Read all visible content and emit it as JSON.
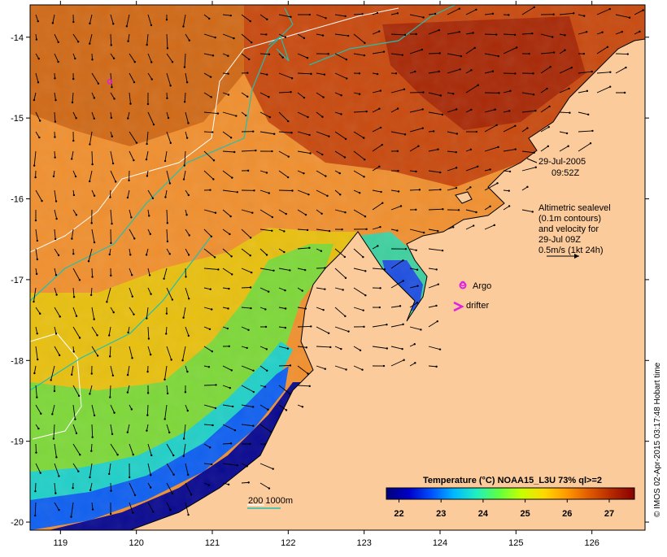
{
  "map": {
    "type": "sea-surface-temperature-map",
    "lon_range": [
      118.6,
      126.7
    ],
    "lat_range": [
      -20.1,
      -13.6
    ],
    "x_ticks": [
      119,
      120,
      121,
      122,
      123,
      124,
      125,
      126
    ],
    "x_tick_labels": [
      "119",
      "120",
      "121",
      "122",
      "123",
      "124",
      "125",
      "126"
    ],
    "y_ticks": [
      -14,
      -15,
      -16,
      -17,
      -18,
      -19,
      -20
    ],
    "y_tick_labels": [
      "-14",
      "-15",
      "-16",
      "-17",
      "-18",
      "-19",
      "-20"
    ]
  },
  "annotations": {
    "date": "29-Jul-2005",
    "time": "09:52Z",
    "alt_line1": "Altimetric sealevel",
    "alt_line2": "(0.1m contours)",
    "alt_line3": "and velocity for",
    "alt_line4": "29-Jul 09Z",
    "alt_line5": "0.5m/s (1kt 24h)",
    "argo_label": "Argo",
    "drifter_label": "drifter",
    "isobath_label": "200  1000m"
  },
  "argo_floats": [
    {
      "lon": 124.3,
      "lat": -17.05
    },
    {
      "lon": 119.65,
      "lat": -14.55
    }
  ],
  "legend": {
    "title": "Temperature (°C) NOAA15_L3U 73% ql>=2",
    "ticks": [
      22,
      23,
      24,
      25,
      26,
      27
    ],
    "tick_labels": [
      "22",
      "23",
      "24",
      "25",
      "26",
      "27"
    ],
    "range": [
      21.7,
      27.6
    ]
  },
  "credit": "© IMOS 02-Apr-2015 03:17:48 Hobart time",
  "colors": {
    "land": "#fbcb9b",
    "colormap": [
      "#00007a",
      "#0000c8",
      "#0050ff",
      "#00b8ff",
      "#20f0c0",
      "#60ff40",
      "#c8ff00",
      "#ffd800",
      "#ff9800",
      "#e05a00",
      "#b42800",
      "#8a0000"
    ],
    "isobath_200": "#ffffff",
    "isobath_1000": "#20c0b0",
    "argo": "#e020e0",
    "drifter": "#e020e0"
  }
}
